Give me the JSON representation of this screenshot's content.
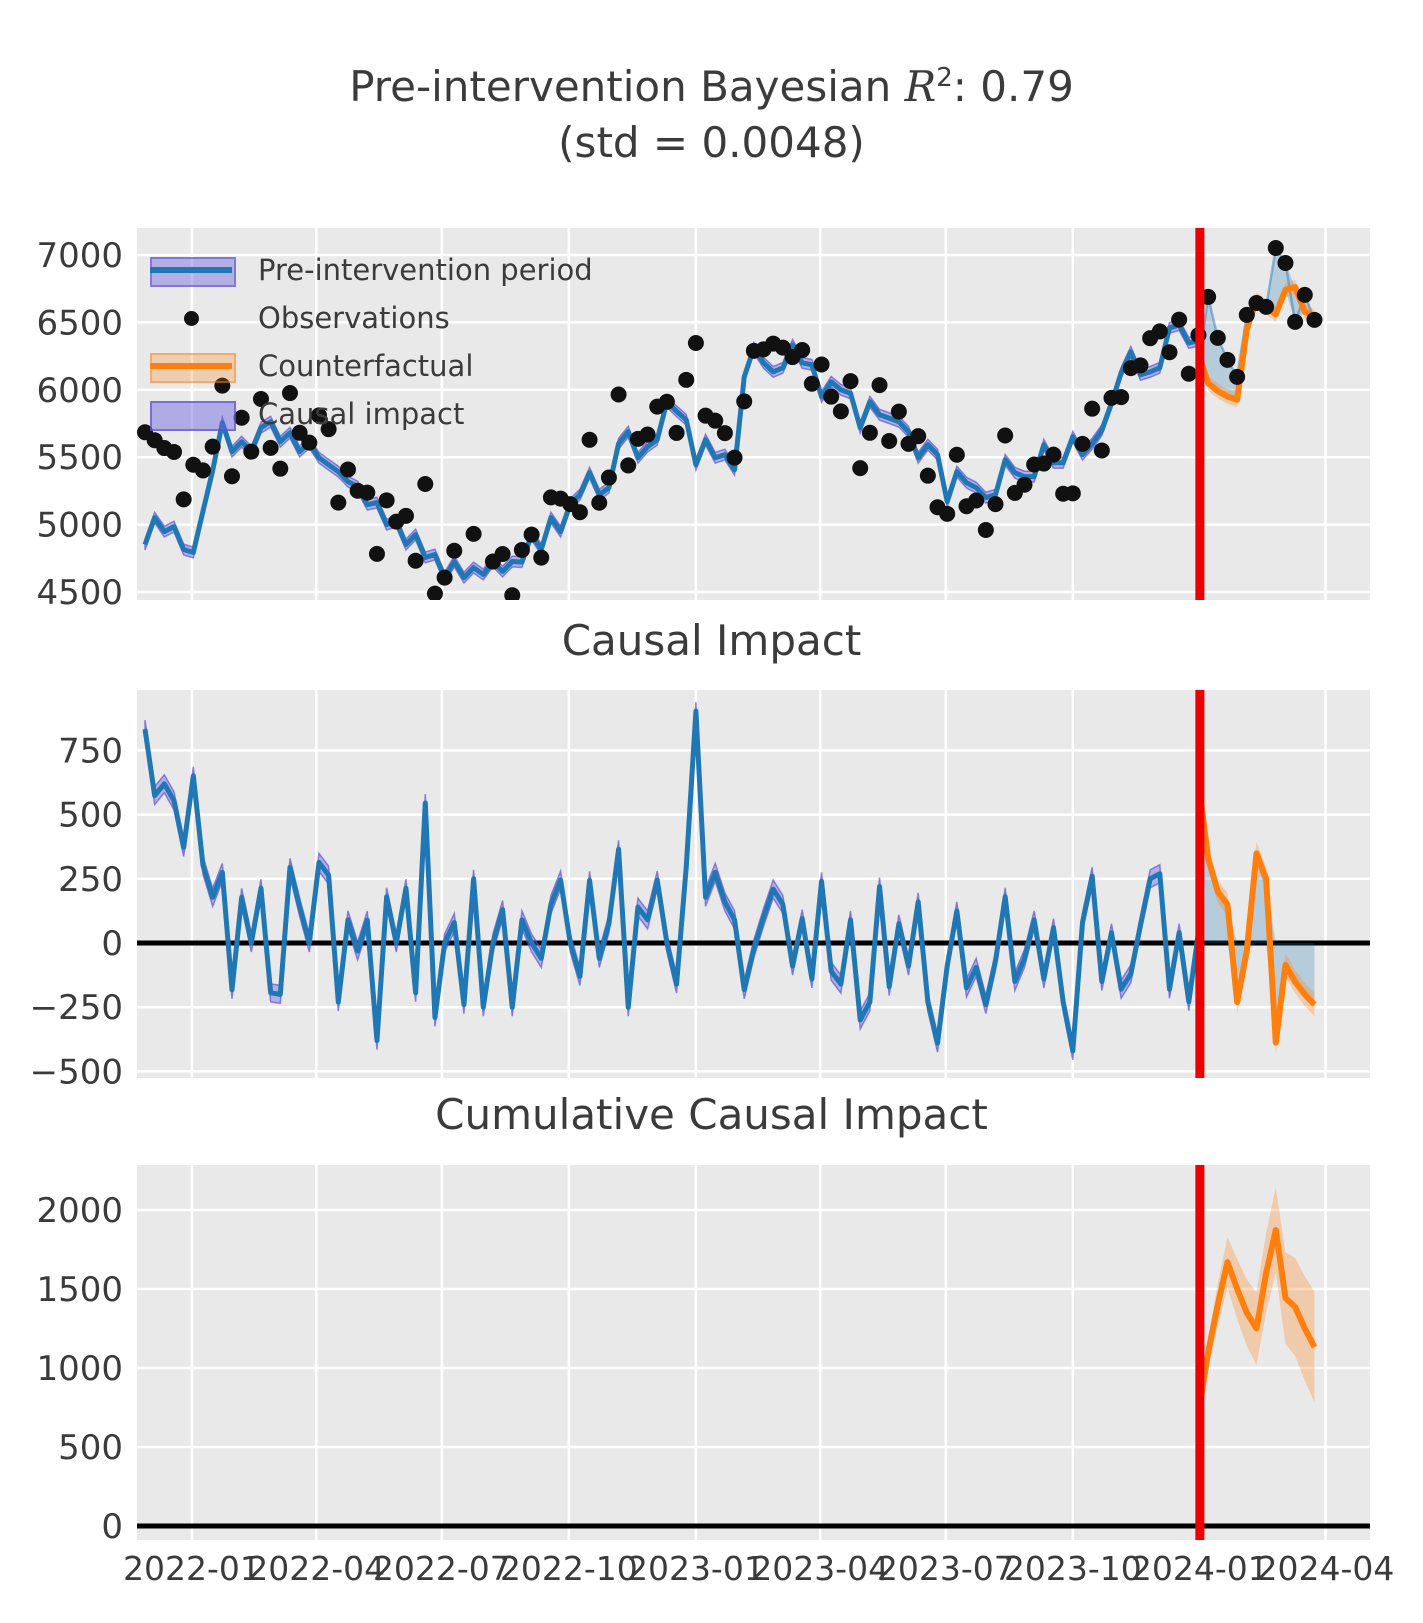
{
  "figure": {
    "title_prefix": "Pre-intervention Bayesian ",
    "title_r": "R",
    "title_sup": "2",
    "title_suffix": ": 0.79",
    "subtitle": "(std = 0.0048)",
    "panel2_title": "Causal Impact",
    "panel3_title": "Cumulative Causal Impact"
  },
  "legend": {
    "items": [
      {
        "label": "Pre-intervention period",
        "swatch": "band-line-blue"
      },
      {
        "label": "Observations",
        "swatch": "black-dot"
      },
      {
        "label": "Counterfactual",
        "swatch": "band-line-orange"
      },
      {
        "label": "Causal impact",
        "swatch": "purple-fill"
      }
    ]
  },
  "colors": {
    "blue_line": "#1f77b4",
    "orange_line": "#ff7f0e",
    "purple_band": "rgba(105,95,225,0.42)",
    "purple_band_edge": "rgba(88,76,210,0.65)",
    "orange_band": "rgba(255,127,14,0.28)",
    "causal_fill": "rgba(31,119,180,0.25)",
    "causal_fill_edge": "rgba(31,119,180,0.45)",
    "treatment_line": "#ee0000",
    "panel_bg": "#e9e9e9",
    "grid": "#ffffff",
    "text": "#3b3b3b",
    "dot": "#111111",
    "zero_line": "#000000"
  },
  "chart_data": {
    "type": "line",
    "title": "Pre-intervention Bayesian R2: 0.79 (std = 0.0048)",
    "x_axis": {
      "start_date": "2021-11-28",
      "step_days": 7,
      "treatment_day": 764,
      "tick_labels": [
        "2022-01",
        "2022-04",
        "2022-07",
        "2022-10",
        "2023-01",
        "2023-04",
        "2023-07",
        "2023-10",
        "2024-01",
        "2024-04"
      ],
      "tick_day_offsets": [
        34,
        124,
        215,
        307,
        399,
        489,
        580,
        672,
        764,
        855
      ]
    },
    "panels": [
      {
        "name": "observed",
        "yticks": [
          7000,
          6500,
          6000,
          5500,
          5000,
          4500
        ]
      },
      {
        "name": "causal_impact",
        "yticks": [
          750,
          500,
          250,
          0,
          -250,
          -500
        ],
        "zero_line": true
      },
      {
        "name": "cumulative_causal_impact",
        "yticks": [
          2000,
          1500,
          1000,
          500,
          0
        ],
        "zero_line": true
      }
    ],
    "series": {
      "pre_fit_mean": [
        4852,
        5052,
        4948,
        4985,
        4815,
        4793,
        5100,
        5400,
        5756,
        5541,
        5615,
        5541,
        5719,
        5763,
        5615,
        5681,
        5541,
        5608,
        5496,
        5444,
        5393,
        5319,
        5282,
        5148,
        5163,
        5000,
        5022,
        4852,
        4926,
        4756,
        4778,
        4607,
        4726,
        4607,
        4681,
        4630,
        4726,
        4652,
        4726,
        4722,
        4926,
        4815,
        5052,
        4948,
        5152,
        5222,
        5385,
        5222,
        5274,
        5600,
        5689,
        5496,
        5578,
        5630,
        5911,
        5840,
        5778,
        5444,
        5630,
        5496,
        5519,
        5407,
        6096,
        6311,
        6200,
        6133,
        6163,
        6333,
        6200,
        6185,
        5948,
        6059,
        6000,
        5974,
        5719,
        5911,
        5815,
        5790,
        5763,
        5689,
        5496,
        5593,
        5519,
        5170,
        5393,
        5311,
        5274,
        5200,
        5222,
        5481,
        5385,
        5356,
        5356,
        5593,
        5459,
        5459,
        5652,
        5519,
        5600,
        5700,
        5900,
        6126,
        6281,
        6111,
        6133,
        6163,
        6459,
        6481,
        6348,
        6363
      ],
      "pre_fit_band_halfwidth": 40,
      "pre_impact": [
        833,
        574,
        620,
        554,
        372,
        651,
        302,
        178,
        275,
        -182,
        178,
        0,
        213,
        -194,
        -200,
        295,
        140,
        0,
        314,
        264,
        -230,
        90,
        -31,
        89,
        -380,
        180,
        0,
        213,
        -194,
        545,
        -290,
        0,
        80,
        -240,
        250,
        -250,
        0,
        130,
        -250,
        90,
        0,
        -60,
        150,
        245,
        0,
        -130,
        244,
        -60,
        75,
        365,
        -250,
        140,
        90,
        245,
        0,
        -160,
        296,
        903,
        178,
        275,
        160,
        90,
        -182,
        -22,
        100,
        210,
        150,
        -90,
        95,
        -140,
        240,
        -110,
        -160,
        90,
        -300,
        -230,
        220,
        -170,
        75,
        -90,
        160,
        -230,
        -390,
        -90,
        125,
        -175,
        -95,
        -240,
        -70,
        180,
        -150,
        -60,
        90,
        -140,
        60,
        -230,
        -420,
        80,
        260,
        -150,
        40,
        -180,
        -120,
        70,
        250,
        270,
        -180,
        40,
        -229,
        43
      ],
      "pre_impact_band_halfwidth": 35,
      "counterfactual_anchor": 6240,
      "counterfactual": [
        6050,
        5990,
        5950,
        5926,
        6450,
        6667,
        6615,
        6560,
        6741,
        6763,
        6578,
        6541
      ],
      "counterfactual_band_halfwidth": 55,
      "post_observations": [
        6689,
        6385,
        6222,
        6096,
        6556,
        6644,
        6615,
        7052,
        6941,
        6504,
        6704,
        6519
      ],
      "post_impact_anchor": 585,
      "post_impact": [
        330,
        200,
        150,
        -230,
        -30,
        349,
        250,
        -388,
        -85,
        -151,
        -200,
        -240
      ],
      "post_impact_band_halfwidth": 45,
      "cumulative_anchor": 765,
      "cumulative": [
        1100,
        1400,
        1670,
        1500,
        1350,
        1250,
        1600,
        1873,
        1443,
        1386,
        1250,
        1133
      ],
      "cumulative_lower_anchor": 705,
      "cumulative_lower": [
        1000,
        1270,
        1510,
        1310,
        1140,
        1020,
        1350,
        1603,
        1153,
        1076,
        920,
        783
      ],
      "cumulative_upper_anchor": 825,
      "cumulative_upper": [
        1200,
        1530,
        1830,
        1690,
        1560,
        1480,
        1850,
        2143,
        1733,
        1696,
        1580,
        1483
      ]
    }
  }
}
